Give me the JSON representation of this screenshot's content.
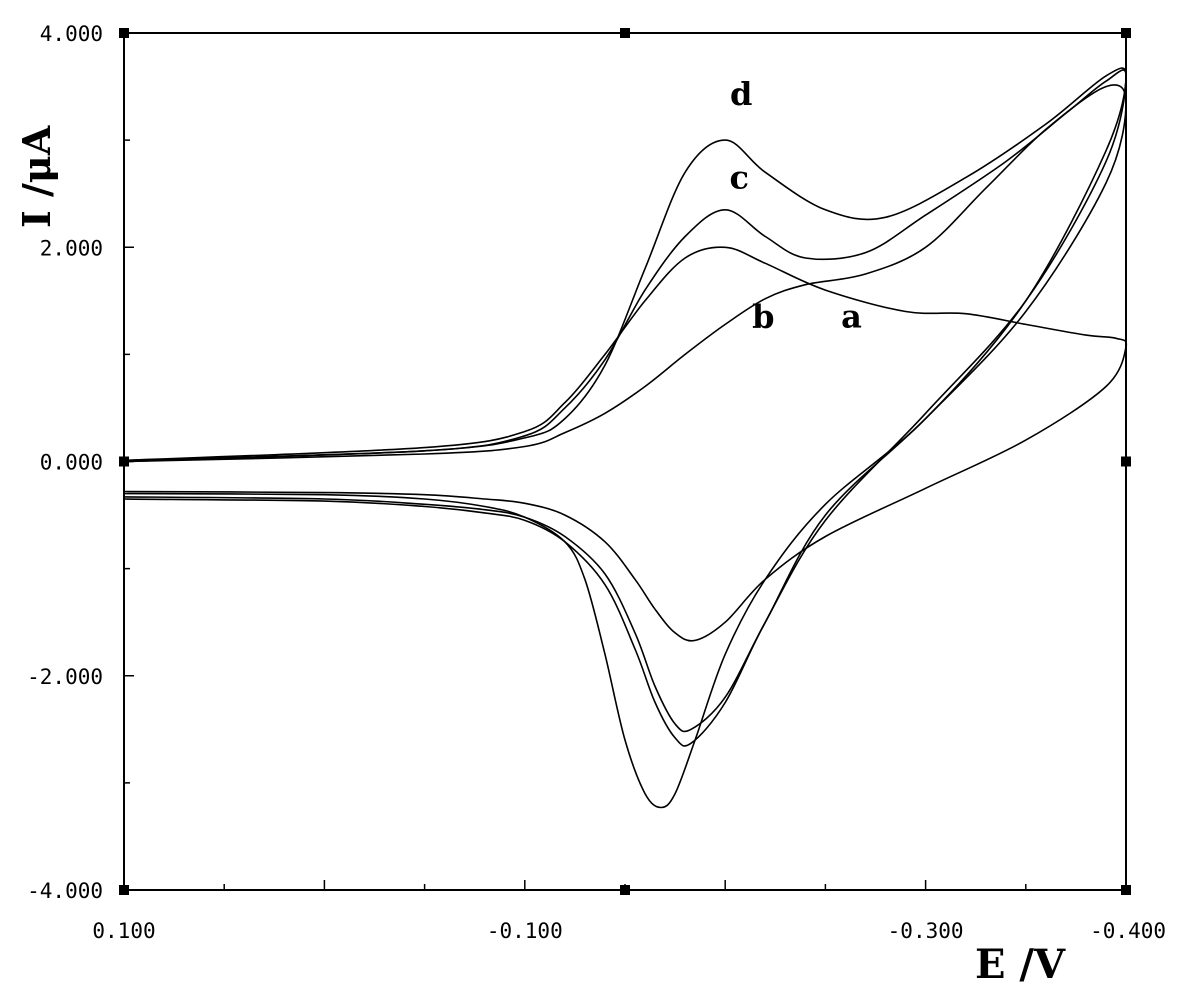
{
  "chart_data": {
    "type": "line",
    "title": "",
    "xlabel": "E /V",
    "ylabel": "I /μA",
    "xlim": [
      0.1,
      -0.4
    ],
    "ylim": [
      -4.0,
      4.0
    ],
    "x_tick_labels": [
      {
        "value": 0.1,
        "label": "0.100"
      },
      {
        "value": -0.1,
        "label": "-0.100"
      },
      {
        "value": -0.3,
        "label": "-0.300"
      },
      {
        "value": -0.4,
        "label": "-0.400"
      }
    ],
    "y_tick_labels": [
      {
        "value": 4.0,
        "label": "4.000"
      },
      {
        "value": 2.0,
        "label": "2.000"
      },
      {
        "value": 0.0,
        "label": "0.000"
      },
      {
        "value": -2.0,
        "label": "-2.000"
      },
      {
        "value": -4.0,
        "label": "-4.000"
      }
    ],
    "grid": false,
    "series": [
      {
        "name": "a",
        "label_point": [
          -0.263,
          1.25
        ],
        "points": [
          [
            0.1,
            -0.28
          ],
          [
            0.0,
            -0.29
          ],
          [
            -0.05,
            -0.31
          ],
          [
            -0.08,
            -0.35
          ],
          [
            -0.1,
            -0.39
          ],
          [
            -0.12,
            -0.5
          ],
          [
            -0.14,
            -0.75
          ],
          [
            -0.155,
            -1.1
          ],
          [
            -0.165,
            -1.38
          ],
          [
            -0.175,
            -1.6
          ],
          [
            -0.185,
            -1.67
          ],
          [
            -0.2,
            -1.5
          ],
          [
            -0.22,
            -1.1
          ],
          [
            -0.25,
            -0.7
          ],
          [
            -0.3,
            -0.25
          ],
          [
            -0.35,
            0.2
          ],
          [
            -0.39,
            0.7
          ],
          [
            -0.4,
            1.07
          ],
          [
            -0.395,
            1.15
          ],
          [
            -0.38,
            1.18
          ],
          [
            -0.35,
            1.28
          ],
          [
            -0.32,
            1.38
          ],
          [
            -0.29,
            1.4
          ],
          [
            -0.25,
            1.6
          ],
          [
            -0.22,
            1.85
          ],
          [
            -0.2,
            2.0
          ],
          [
            -0.18,
            1.9
          ],
          [
            -0.16,
            1.5
          ],
          [
            -0.14,
            1.0
          ],
          [
            -0.12,
            0.55
          ],
          [
            -0.1,
            0.28
          ],
          [
            -0.05,
            0.13
          ],
          [
            0.1,
            0.01
          ]
        ]
      },
      {
        "name": "b",
        "label_point": [
          -0.219,
          1.25
        ],
        "points": [
          [
            0.1,
            -0.33
          ],
          [
            0.0,
            -0.35
          ],
          [
            -0.05,
            -0.4
          ],
          [
            -0.08,
            -0.45
          ],
          [
            -0.1,
            -0.52
          ],
          [
            -0.12,
            -0.7
          ],
          [
            -0.14,
            -1.05
          ],
          [
            -0.155,
            -1.6
          ],
          [
            -0.165,
            -2.1
          ],
          [
            -0.175,
            -2.45
          ],
          [
            -0.183,
            -2.5
          ],
          [
            -0.2,
            -2.2
          ],
          [
            -0.22,
            -1.5
          ],
          [
            -0.25,
            -0.5
          ],
          [
            -0.3,
            0.4
          ],
          [
            -0.35,
            1.4
          ],
          [
            -0.39,
            2.6
          ],
          [
            -0.4,
            3.35
          ],
          [
            -0.39,
            3.5
          ],
          [
            -0.36,
            3.1
          ],
          [
            -0.33,
            2.55
          ],
          [
            -0.3,
            2.0
          ],
          [
            -0.27,
            1.75
          ],
          [
            -0.24,
            1.65
          ],
          [
            -0.22,
            1.52
          ],
          [
            -0.2,
            1.28
          ],
          [
            -0.18,
            1.0
          ],
          [
            -0.16,
            0.7
          ],
          [
            -0.14,
            0.45
          ],
          [
            -0.12,
            0.27
          ],
          [
            -0.1,
            0.14
          ],
          [
            -0.05,
            0.07
          ],
          [
            0.1,
            0.0
          ]
        ]
      },
      {
        "name": "c",
        "label_point": [
          -0.207,
          2.55
        ],
        "points": [
          [
            0.1,
            -0.35
          ],
          [
            0.0,
            -0.37
          ],
          [
            -0.05,
            -0.42
          ],
          [
            -0.08,
            -0.48
          ],
          [
            -0.1,
            -0.55
          ],
          [
            -0.12,
            -0.75
          ],
          [
            -0.14,
            -1.15
          ],
          [
            -0.155,
            -1.75
          ],
          [
            -0.165,
            -2.25
          ],
          [
            -0.175,
            -2.58
          ],
          [
            -0.183,
            -2.63
          ],
          [
            -0.2,
            -2.25
          ],
          [
            -0.22,
            -1.5
          ],
          [
            -0.25,
            -0.55
          ],
          [
            -0.3,
            0.45
          ],
          [
            -0.35,
            1.5
          ],
          [
            -0.39,
            2.8
          ],
          [
            -0.4,
            3.6
          ],
          [
            -0.39,
            3.55
          ],
          [
            -0.37,
            3.25
          ],
          [
            -0.34,
            2.8
          ],
          [
            -0.3,
            2.3
          ],
          [
            -0.27,
            1.95
          ],
          [
            -0.24,
            1.9
          ],
          [
            -0.22,
            2.1
          ],
          [
            -0.2,
            2.35
          ],
          [
            -0.18,
            2.1
          ],
          [
            -0.16,
            1.6
          ],
          [
            -0.14,
            0.95
          ],
          [
            -0.12,
            0.5
          ],
          [
            -0.1,
            0.24
          ],
          [
            -0.05,
            0.1
          ],
          [
            0.1,
            0.01
          ]
        ]
      },
      {
        "name": "d",
        "label_point": [
          -0.208,
          3.33
        ],
        "points": [
          [
            0.1,
            -0.3
          ],
          [
            0.0,
            -0.31
          ],
          [
            -0.05,
            -0.35
          ],
          [
            -0.08,
            -0.42
          ],
          [
            -0.1,
            -0.52
          ],
          [
            -0.12,
            -0.75
          ],
          [
            -0.13,
            -1.1
          ],
          [
            -0.14,
            -1.8
          ],
          [
            -0.15,
            -2.6
          ],
          [
            -0.16,
            -3.1
          ],
          [
            -0.168,
            -3.23
          ],
          [
            -0.175,
            -3.1
          ],
          [
            -0.185,
            -2.6
          ],
          [
            -0.2,
            -1.8
          ],
          [
            -0.22,
            -1.1
          ],
          [
            -0.25,
            -0.4
          ],
          [
            -0.3,
            0.4
          ],
          [
            -0.35,
            1.5
          ],
          [
            -0.39,
            2.9
          ],
          [
            -0.4,
            3.6
          ],
          [
            -0.39,
            3.6
          ],
          [
            -0.36,
            3.15
          ],
          [
            -0.32,
            2.65
          ],
          [
            -0.28,
            2.28
          ],
          [
            -0.25,
            2.35
          ],
          [
            -0.22,
            2.7
          ],
          [
            -0.2,
            3.0
          ],
          [
            -0.18,
            2.7
          ],
          [
            -0.16,
            1.8
          ],
          [
            -0.14,
            0.9
          ],
          [
            -0.12,
            0.4
          ],
          [
            -0.1,
            0.22
          ],
          [
            -0.05,
            0.1
          ],
          [
            0.1,
            0.0
          ]
        ]
      }
    ]
  }
}
